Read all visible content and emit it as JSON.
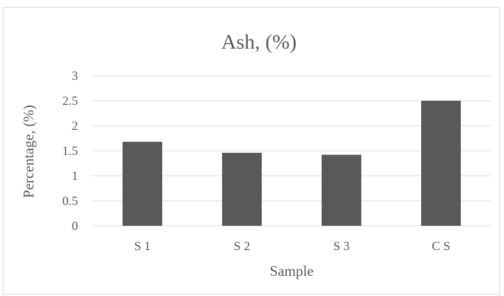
{
  "chart_data": {
    "type": "bar",
    "title": "Ash, (%)",
    "xlabel": "Sample",
    "ylabel": "Percentage, (%)",
    "categories": [
      "S 1",
      "S 2",
      "S 3",
      "C S"
    ],
    "values": [
      1.68,
      1.46,
      1.42,
      2.5
    ],
    "ylim": [
      0,
      3
    ],
    "yticks": [
      "0",
      "0.5",
      "1",
      "1.5",
      "2",
      "2.5",
      "3"
    ],
    "grid": true,
    "legend": "none",
    "bar_color": "#595959",
    "grid_color": "#d9d9d9"
  }
}
